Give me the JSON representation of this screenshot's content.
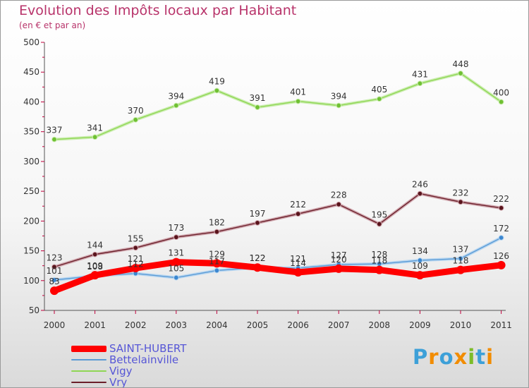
{
  "title": "Evolution des Impôts locaux par Habitant",
  "subtitle": "(en € et par an)",
  "logo_text": "Proxiti",
  "chart_data": {
    "type": "line",
    "title": "Evolution des Impôts locaux par Habitant",
    "subtitle": "(en € et par an)",
    "xlabel": "",
    "ylabel": "",
    "ylim": [
      50,
      500
    ],
    "yticks": [
      "50",
      "100",
      "150",
      "200",
      "250",
      "300",
      "350",
      "400",
      "450",
      "500"
    ],
    "categories": [
      "2000",
      "2001",
      "2002",
      "2003",
      "2004",
      "2005",
      "2006",
      "2007",
      "2008",
      "2009",
      "2010",
      "2011"
    ],
    "grid": false,
    "legend_position": "bottom-left",
    "series": [
      {
        "name": "Vry",
        "color": "#6b1f2a",
        "values": [
          123,
          144,
          155,
          173,
          182,
          197,
          212,
          228,
          195,
          246,
          232,
          222
        ]
      },
      {
        "name": "Vigy",
        "color": "#8fd654",
        "values": [
          337,
          341,
          370,
          394,
          419,
          391,
          401,
          394,
          405,
          431,
          448,
          400
        ]
      },
      {
        "name": "Bettelainville",
        "color": "#5b9bd5",
        "values": [
          101,
          108,
          112,
          105,
          117,
          122,
          121,
          127,
          128,
          134,
          137,
          172
        ]
      },
      {
        "name": "SAINT-HUBERT",
        "color": "#ff0000",
        "values": [
          83,
          109,
          121,
          131,
          129,
          122,
          114,
          120,
          118,
          109,
          118,
          126
        ]
      }
    ],
    "legend_order": [
      "SAINT-HUBERT",
      "Bettelainville",
      "Vigy",
      "Vry"
    ]
  }
}
